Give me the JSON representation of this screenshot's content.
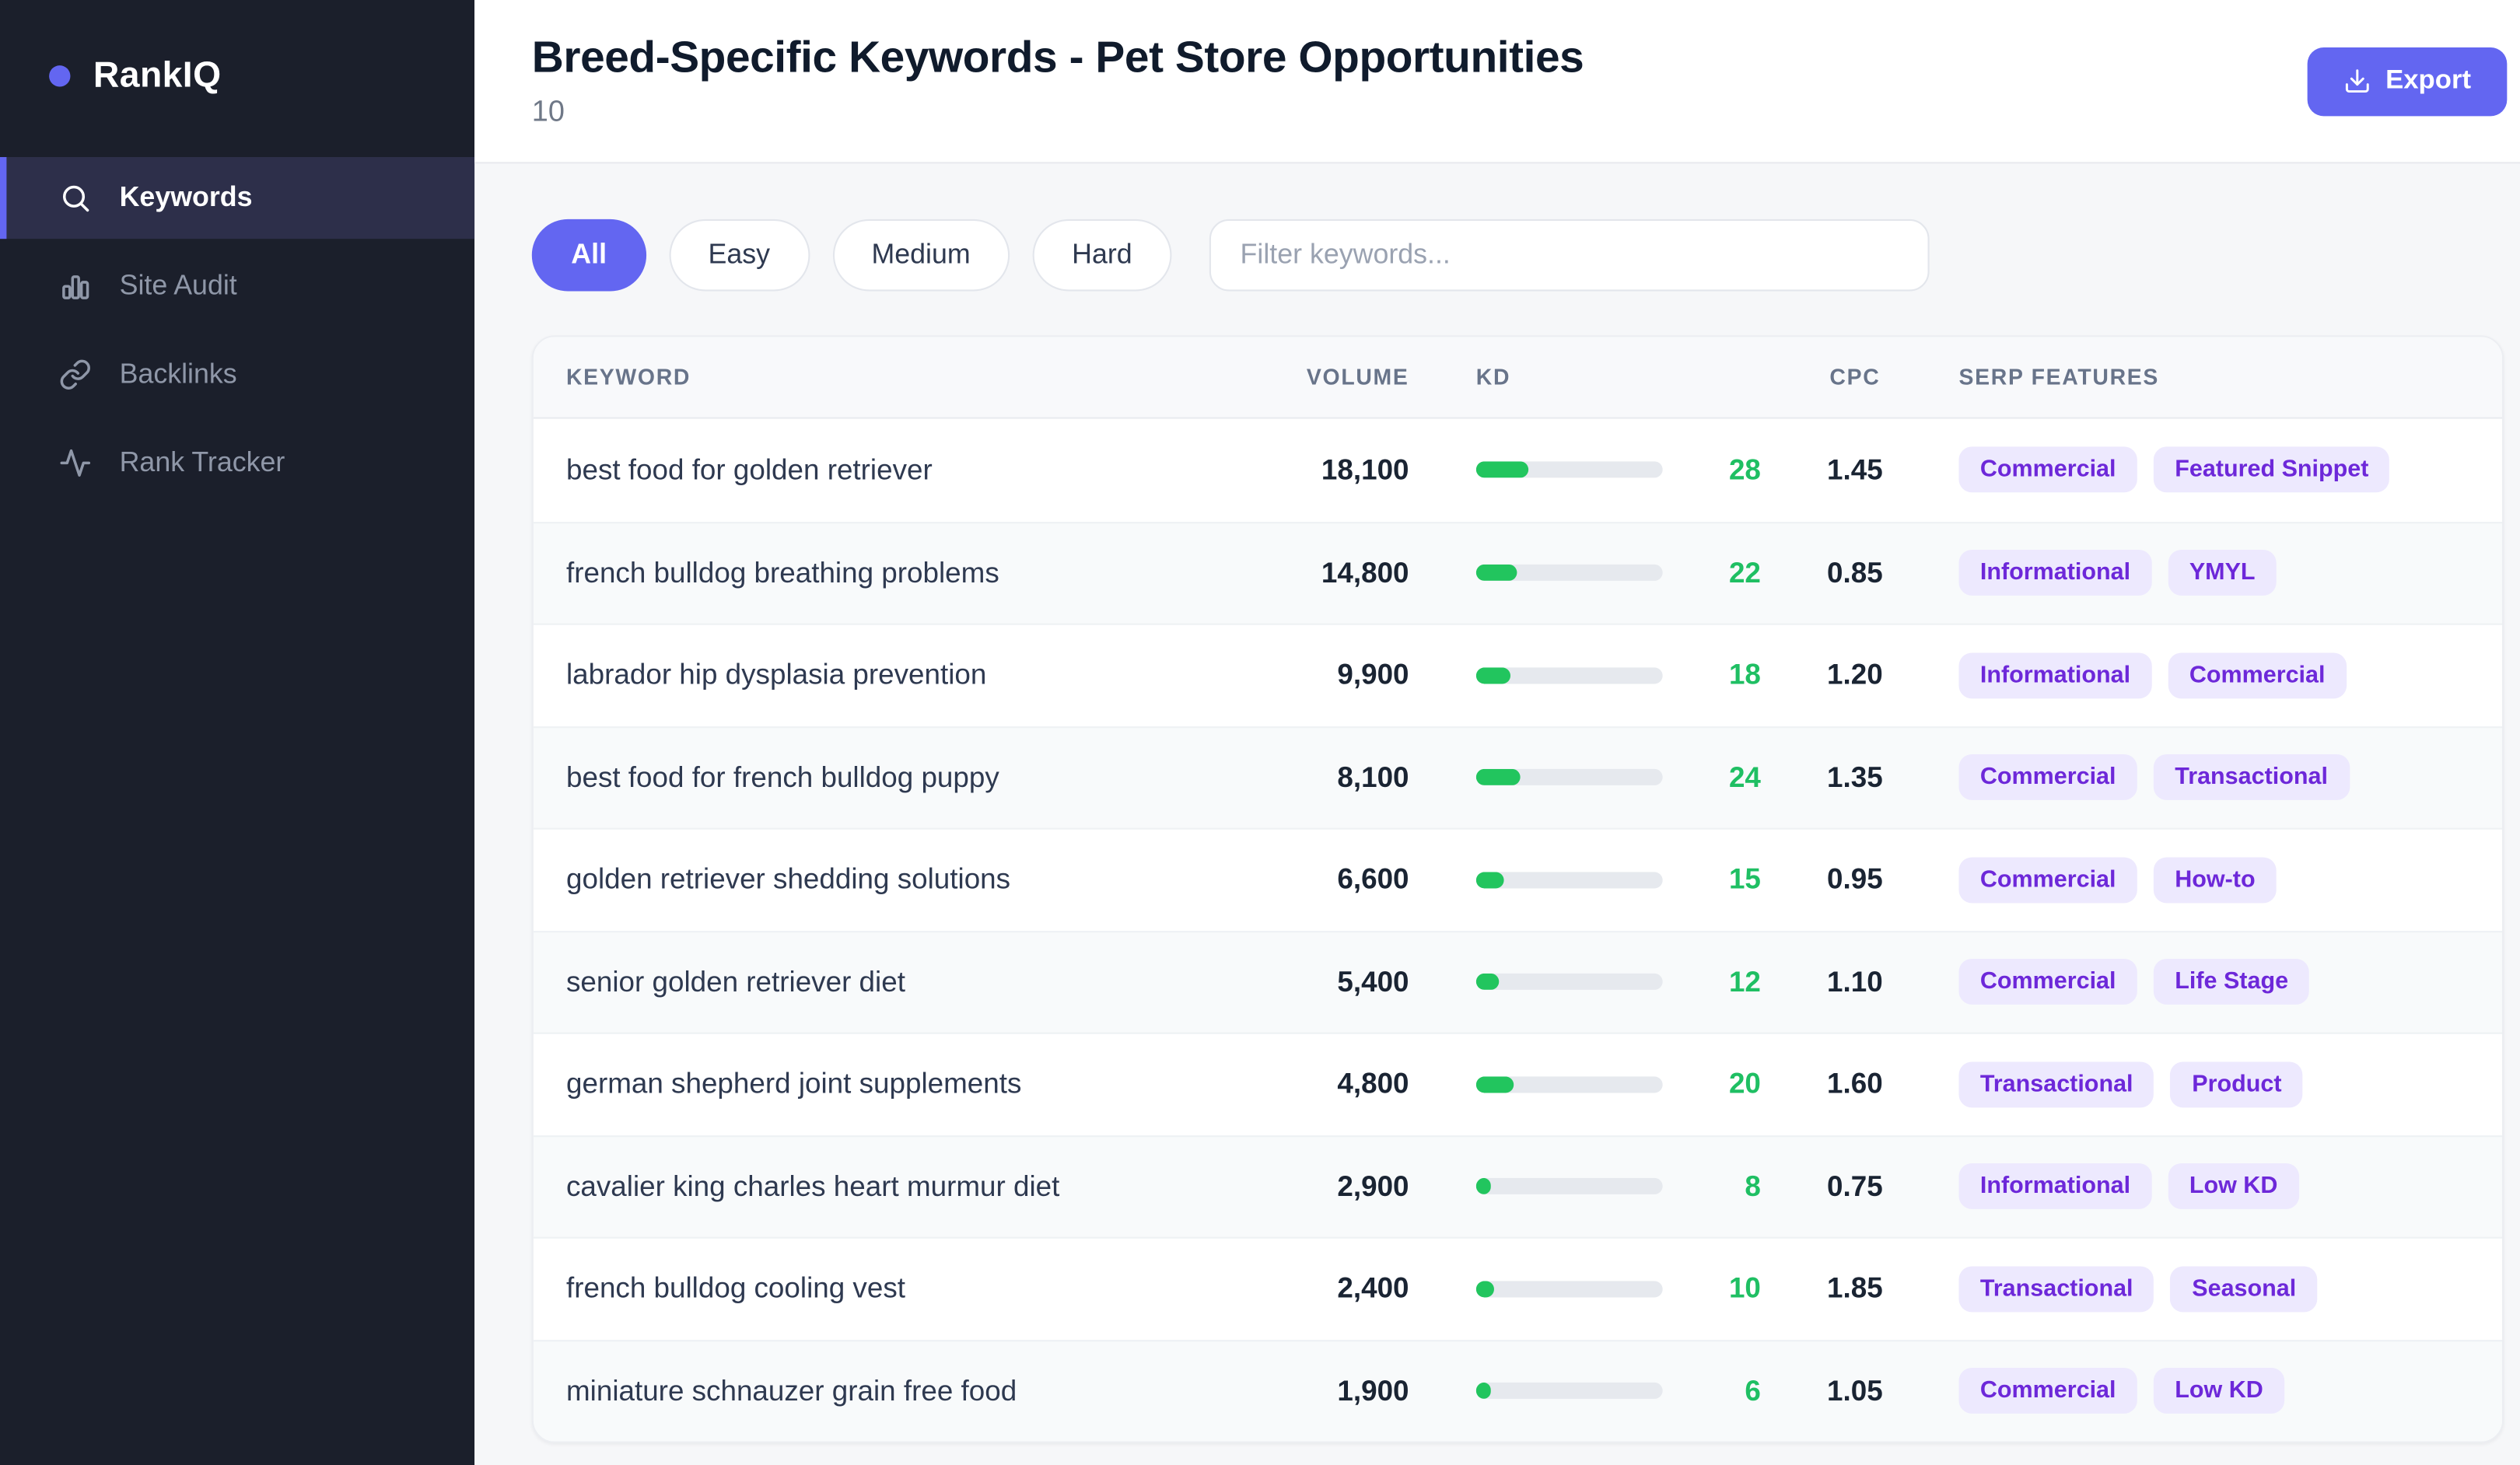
{
  "colors": {
    "accent": "#6366f1",
    "kd_green": "#22c55e",
    "kd_green_text": "#1fbf63",
    "tag_bg": "#ede9fe",
    "tag_text": "#6d28d9",
    "sidebar_bg": "#1b1f2b"
  },
  "sidebar": {
    "logo": "RankIQ",
    "items": [
      {
        "label": "Keywords",
        "icon": "search-icon",
        "active": true
      },
      {
        "label": "Site Audit",
        "icon": "bar-chart-icon",
        "active": false
      },
      {
        "label": "Backlinks",
        "icon": "link-icon",
        "active": false
      },
      {
        "label": "Rank Tracker",
        "icon": "activity-icon",
        "active": false
      }
    ]
  },
  "header": {
    "title": "Breed-Specific Keywords - Pet Store Opportunities",
    "subtitle": "10",
    "export_label": "Export"
  },
  "filters": {
    "pills": [
      "All",
      "Easy",
      "Medium",
      "Hard"
    ],
    "active": "All",
    "search_placeholder": "Filter keywords..."
  },
  "table": {
    "columns": [
      "KEYWORD",
      "VOLUME",
      "KD",
      "CPC",
      "SERP FEATURES"
    ],
    "rows": [
      {
        "keyword": "best food for golden retriever",
        "volume": "18,100",
        "kd": 28,
        "cpc": "1.45",
        "serp": [
          "Commercial",
          "Featured Snippet"
        ]
      },
      {
        "keyword": "french bulldog breathing problems",
        "volume": "14,800",
        "kd": 22,
        "cpc": "0.85",
        "serp": [
          "Informational",
          "YMYL"
        ]
      },
      {
        "keyword": "labrador hip dysplasia prevention",
        "volume": "9,900",
        "kd": 18,
        "cpc": "1.20",
        "serp": [
          "Informational",
          "Commercial"
        ]
      },
      {
        "keyword": "best food for french bulldog puppy",
        "volume": "8,100",
        "kd": 24,
        "cpc": "1.35",
        "serp": [
          "Commercial",
          "Transactional"
        ]
      },
      {
        "keyword": "golden retriever shedding solutions",
        "volume": "6,600",
        "kd": 15,
        "cpc": "0.95",
        "serp": [
          "Commercial",
          "How-to"
        ]
      },
      {
        "keyword": "senior golden retriever diet",
        "volume": "5,400",
        "kd": 12,
        "cpc": "1.10",
        "serp": [
          "Commercial",
          "Life Stage"
        ]
      },
      {
        "keyword": "german shepherd joint supplements",
        "volume": "4,800",
        "kd": 20,
        "cpc": "1.60",
        "serp": [
          "Transactional",
          "Product"
        ]
      },
      {
        "keyword": "cavalier king charles heart murmur diet",
        "volume": "2,900",
        "kd": 8,
        "cpc": "0.75",
        "serp": [
          "Informational",
          "Low KD"
        ]
      },
      {
        "keyword": "french bulldog cooling vest",
        "volume": "2,400",
        "kd": 10,
        "cpc": "1.85",
        "serp": [
          "Transactional",
          "Seasonal"
        ]
      },
      {
        "keyword": "miniature schnauzer grain free food",
        "volume": "1,900",
        "kd": 6,
        "cpc": "1.05",
        "serp": [
          "Commercial",
          "Low KD"
        ]
      }
    ]
  }
}
